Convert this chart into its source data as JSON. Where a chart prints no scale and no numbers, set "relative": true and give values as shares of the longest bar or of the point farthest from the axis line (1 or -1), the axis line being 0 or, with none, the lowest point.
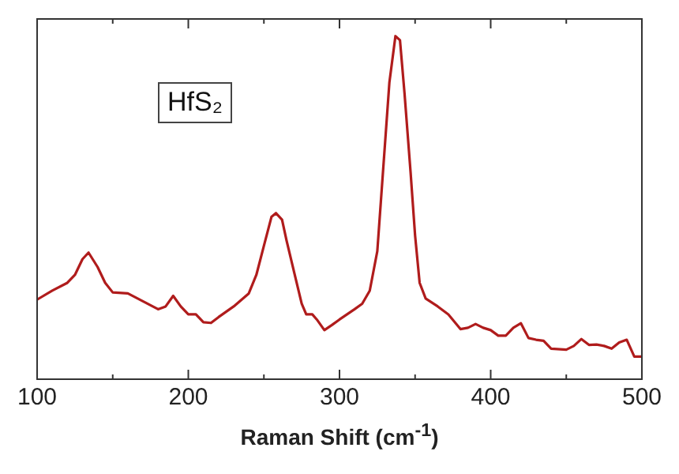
{
  "chart_data": {
    "type": "line",
    "relative": true,
    "xlabel": "Raman Shift (cm$^{-1}$)",
    "annotations": [
      "HfS₂"
    ],
    "xlim": [
      100,
      500
    ],
    "xticks": [
      100,
      200,
      300,
      400,
      500
    ],
    "tick_labels": "x",
    "marker": "none",
    "line_style": "solid",
    "grid": false,
    "legend": false,
    "series": [
      {
        "color": "#b01c1c",
        "x": [
          100,
          110,
          120,
          125,
          130,
          134,
          140,
          145,
          150,
          160,
          170,
          180,
          185,
          190,
          195,
          200,
          205,
          210,
          215,
          220,
          230,
          240,
          245,
          250,
          255,
          258,
          262,
          265,
          270,
          275,
          278,
          282,
          285,
          290,
          295,
          300,
          310,
          315,
          320,
          325,
          330,
          333,
          337,
          340,
          343,
          347,
          350,
          353,
          357,
          365,
          372,
          380,
          385,
          390,
          395,
          400,
          405,
          410,
          415,
          420,
          425,
          430,
          435,
          440,
          450,
          455,
          460,
          465,
          470,
          475,
          480,
          485,
          490,
          495,
          500
        ],
        "values": [
          0.232,
          0.258,
          0.281,
          0.304,
          0.35,
          0.369,
          0.327,
          0.281,
          0.253,
          0.25,
          0.227,
          0.204,
          0.212,
          0.243,
          0.212,
          0.189,
          0.189,
          0.166,
          0.164,
          0.181,
          0.212,
          0.25,
          0.304,
          0.389,
          0.473,
          0.484,
          0.465,
          0.404,
          0.312,
          0.22,
          0.189,
          0.189,
          0.174,
          0.143,
          0.158,
          0.174,
          0.204,
          0.22,
          0.258,
          0.373,
          0.68,
          0.865,
          1.0,
          0.988,
          0.834,
          0.604,
          0.419,
          0.281,
          0.235,
          0.212,
          0.189,
          0.146,
          0.15,
          0.161,
          0.15,
          0.143,
          0.127,
          0.127,
          0.15,
          0.163,
          0.12,
          0.115,
          0.112,
          0.089,
          0.086,
          0.097,
          0.117,
          0.1,
          0.101,
          0.097,
          0.089,
          0.107,
          0.115,
          0.066,
          0.066
        ]
      }
    ]
  }
}
